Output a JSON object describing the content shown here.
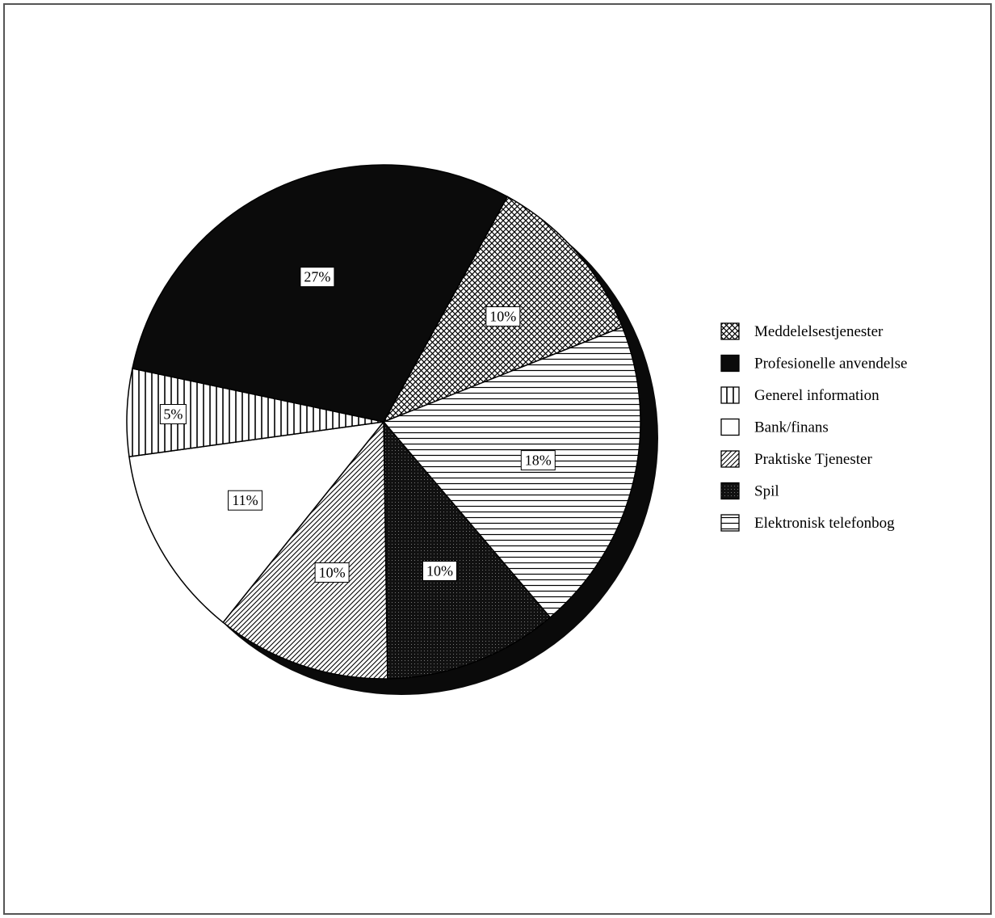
{
  "chart_data": {
    "type": "pie",
    "title": "",
    "legend_position": "right",
    "slices": [
      {
        "label": "Meddelelsestjenester",
        "value": 10,
        "value_label": "10%",
        "pattern": "crosshatch"
      },
      {
        "label": "Elektronisk telefonbog",
        "value": 18,
        "value_label": "18%",
        "pattern": "horizontal"
      },
      {
        "label": "Spil",
        "value": 10,
        "value_label": "10%",
        "pattern": "dark-dotted"
      },
      {
        "label": "Praktiske Tjenester",
        "value": 10,
        "value_label": "10%",
        "pattern": "diagonal"
      },
      {
        "label": "Bank/finans",
        "value": 11,
        "value_label": "11%",
        "pattern": "white"
      },
      {
        "label": "Generel information",
        "value": 5,
        "value_label": "5%",
        "pattern": "vertical"
      },
      {
        "label": "Profesionelle anvendelse",
        "value": 27,
        "value_label": "27%",
        "pattern": "solid-black"
      }
    ],
    "legend": [
      {
        "label": "Meddelelsestjenester",
        "pattern": "crosshatch"
      },
      {
        "label": "Profesionelle anvendelse",
        "pattern": "solid-black"
      },
      {
        "label": "Generel information",
        "pattern": "vertical"
      },
      {
        "label": "Bank/finans",
        "pattern": "white"
      },
      {
        "label": "Praktiske Tjenester",
        "pattern": "diagonal"
      },
      {
        "label": "Spil",
        "pattern": "dark-dotted"
      },
      {
        "label": "Elektronisk telefonbog",
        "pattern": "horizontal"
      }
    ]
  }
}
